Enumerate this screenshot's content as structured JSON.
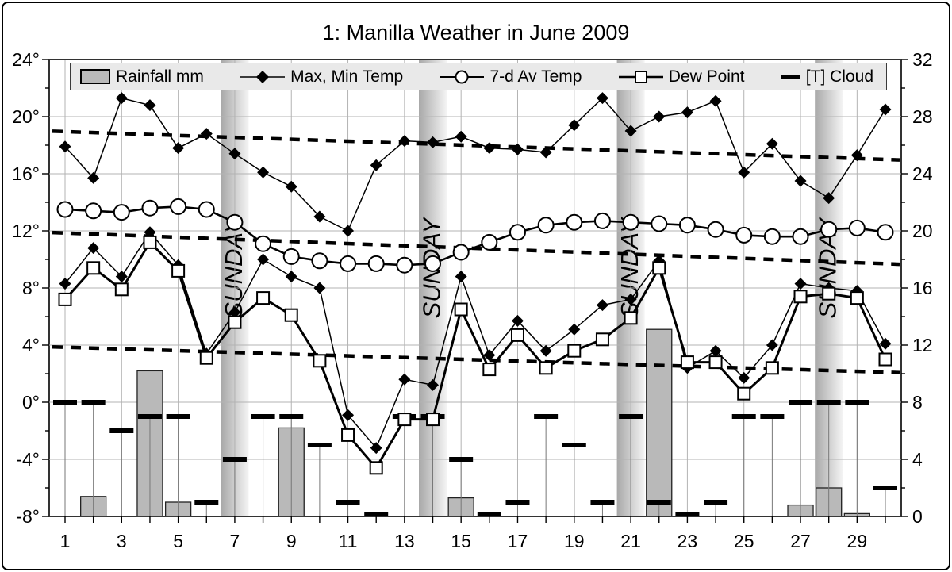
{
  "title": "1: Manilla Weather in June 2009",
  "legend": {
    "rainfall": "Rainfall mm",
    "maxmin": "Max, Min Temp",
    "avg": "7-d Av Temp",
    "dew": "Dew Point",
    "cloud": "[T] Cloud"
  },
  "axes": {
    "left_tick_labels": [
      "24°",
      "20°",
      "16°",
      "12°",
      "8°",
      "4°",
      "0°",
      "-4°",
      "-8°"
    ],
    "left_tick_temps": [
      24,
      20,
      16,
      12,
      8,
      4,
      0,
      -4,
      -8
    ],
    "right_tick_labels": [
      "32",
      "28",
      "24",
      "20",
      "16",
      "12",
      "8",
      "4",
      "0"
    ],
    "x_tick_labels": [
      1,
      3,
      5,
      7,
      9,
      11,
      13,
      15,
      17,
      19,
      21,
      23,
      25,
      27,
      29
    ],
    "left_range": [
      -8,
      24
    ],
    "right_range": [
      0,
      32
    ],
    "x_range": [
      1,
      30
    ]
  },
  "chart_data": {
    "type": "line",
    "x_days": [
      1,
      2,
      3,
      4,
      5,
      6,
      7,
      8,
      9,
      10,
      11,
      12,
      13,
      14,
      15,
      16,
      17,
      18,
      19,
      20,
      21,
      22,
      23,
      24,
      25,
      26,
      27,
      28,
      29,
      30
    ],
    "series": [
      {
        "name": "Rainfall mm",
        "type": "bar",
        "axis": "right",
        "values": [
          0,
          1.4,
          0,
          10.2,
          1.0,
          0,
          0,
          0,
          6.2,
          0,
          0,
          0,
          0,
          0,
          1.3,
          0,
          0,
          0,
          0,
          0,
          0,
          13.1,
          0,
          0,
          0,
          0,
          0.8,
          2.0,
          0.2,
          0
        ]
      },
      {
        "name": "Max Temp",
        "type": "line",
        "marker": "diamond",
        "axis": "left",
        "values": [
          17.9,
          15.7,
          21.3,
          20.8,
          17.8,
          18.8,
          17.4,
          16.1,
          15.1,
          13.0,
          12.0,
          16.6,
          18.3,
          18.2,
          18.6,
          17.8,
          17.7,
          17.5,
          19.4,
          21.3,
          19.0,
          20.0,
          20.3,
          21.1,
          16.1,
          18.1,
          15.5,
          14.3,
          17.3,
          20.5
        ]
      },
      {
        "name": "Min Temp",
        "type": "line",
        "marker": "diamond",
        "axis": "left",
        "values": [
          8.3,
          10.8,
          8.8,
          11.9,
          9.6,
          3.4,
          6.3,
          10.0,
          8.8,
          8.0,
          -0.9,
          -3.2,
          1.6,
          1.2,
          8.8,
          3.3,
          5.7,
          3.6,
          5.1,
          6.8,
          7.2,
          9.9,
          2.4,
          3.6,
          1.7,
          4.0,
          8.3,
          8.0,
          7.8,
          4.1
        ]
      },
      {
        "name": "7-d Av Temp",
        "type": "line",
        "marker": "circle",
        "axis": "left",
        "values": [
          13.5,
          13.4,
          13.3,
          13.6,
          13.7,
          13.5,
          12.6,
          11.1,
          10.2,
          9.9,
          9.7,
          9.7,
          9.6,
          9.7,
          10.5,
          11.2,
          11.9,
          12.4,
          12.6,
          12.7,
          12.6,
          12.5,
          12.4,
          12.1,
          11.7,
          11.6,
          11.6,
          12.1,
          12.2,
          11.9
        ]
      },
      {
        "name": "Dew Point",
        "type": "line",
        "marker": "square",
        "axis": "left",
        "values": [
          7.2,
          9.4,
          7.9,
          11.2,
          9.2,
          3.1,
          5.6,
          7.3,
          6.1,
          2.9,
          -2.3,
          -4.6,
          -1.2,
          -1.2,
          6.5,
          2.3,
          4.7,
          2.4,
          3.6,
          4.4,
          5.9,
          9.4,
          2.8,
          2.8,
          0.6,
          2.4,
          7.4,
          7.6,
          7.3,
          3.0
        ]
      },
      {
        "name": "[T] Cloud",
        "type": "dash",
        "axis": "right",
        "values": [
          8,
          8,
          6,
          7,
          7,
          1,
          4,
          7,
          7,
          5,
          1,
          0,
          7,
          7,
          4,
          0,
          1,
          7,
          5,
          1,
          7,
          1,
          0,
          1,
          7,
          7,
          8,
          8,
          8,
          2
        ]
      }
    ],
    "trend_lines": [
      {
        "x1": 1,
        "y1": 18.95,
        "x2": 30,
        "y2": 17.0
      },
      {
        "x1": 1,
        "y1": 11.85,
        "x2": 30,
        "y2": 9.7
      },
      {
        "x1": 1,
        "y1": 3.85,
        "x2": 30,
        "y2": 2.1
      }
    ],
    "sunday_bands": {
      "label": "SUNDAY",
      "days": [
        7,
        14,
        21,
        28
      ]
    },
    "grid": true,
    "legend_position": "top"
  },
  "colors": {
    "bar_fill": "#b9b9b9",
    "bar_stroke": "#222222",
    "grid": "#b3b3b3",
    "band_dark": "#a8a8a8",
    "band_light": "#f4f4f4",
    "sunday_text": "#9c9c9c",
    "series_stroke": "#000000",
    "legend_bg": "#e9e9e9"
  }
}
